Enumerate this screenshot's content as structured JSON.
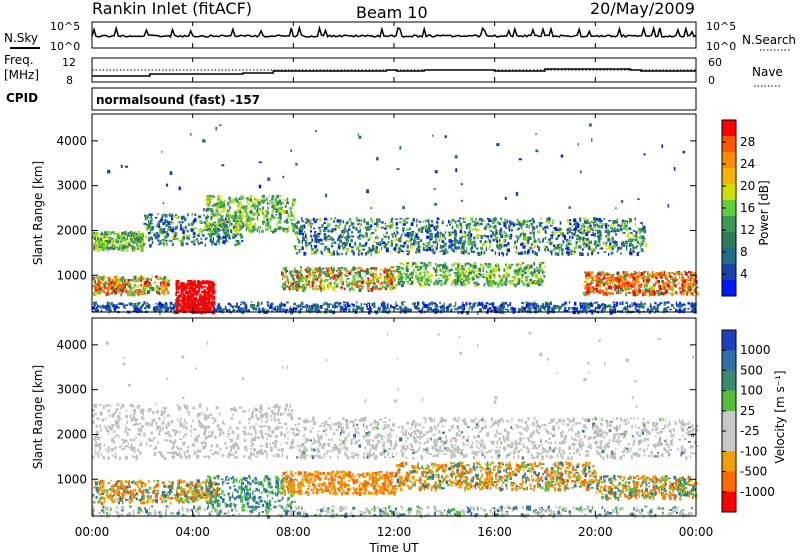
{
  "header": {
    "title": "Rankin Inlet (fitACF)",
    "beam": "Beam 10",
    "date": "20/May/2009"
  },
  "top_panels": {
    "nsky_label": "N.Sky",
    "nsky_ticks": [
      "10^5",
      "10^0"
    ],
    "nsearch_label": "N.Search",
    "nsearch_ticks": [
      "10^5",
      "10^0"
    ],
    "freq_label_1": "Freq.",
    "freq_label_2": "[MHz]",
    "freq_ticks": [
      "12",
      "8"
    ],
    "nave_label": "Nave",
    "nave_ticks": [
      "60",
      "0"
    ],
    "cpid_label": "CPID",
    "cpid_text": "normalsound (fast) -157"
  },
  "chart_data": [
    {
      "type": "heatmap",
      "name": "power",
      "ylabel": "Slant Range [km]",
      "ylim": [
        180,
        4600
      ],
      "y_ticks": [
        1000,
        2000,
        3000,
        4000
      ],
      "y_tick_labels": [
        "1000",
        "2000",
        "3000",
        "4000"
      ],
      "colorbar_label": "Power [dB]",
      "colorbar_ticks": [
        "28",
        "24",
        "20",
        "16",
        "12",
        "8",
        "4"
      ],
      "colorbar_colors": [
        "#ff0000",
        "#ff5500",
        "#ff8c00",
        "#f5b400",
        "#cfe000",
        "#5fd03a",
        "#3a9a55",
        "#2e7d5a",
        "#1f6e8a",
        "#1744a8",
        "#0018ff"
      ]
    },
    {
      "type": "heatmap",
      "name": "velocity",
      "ylabel": "Slant Range [km]",
      "xlabel": "Time UT",
      "ylim": [
        180,
        4600
      ],
      "y_ticks": [
        1000,
        2000,
        3000,
        4000
      ],
      "y_tick_labels": [
        "1000",
        "2000",
        "3000",
        "4000"
      ],
      "colorbar_label": "Velocity [m s⁻¹]",
      "colorbar_ticks": [
        "1000",
        "500",
        "100",
        "25",
        "-25",
        "-100",
        "-500",
        "-1000"
      ],
      "colorbar_colors": [
        "#1f3fbf",
        "#2d6fa8",
        "#3a8a72",
        "#54c03a",
        "#c8c8c8",
        "#c8c8c8",
        "#f0a000",
        "#ff6a00",
        "#ff0000"
      ]
    }
  ],
  "x_axis": {
    "label": "Time UT",
    "hours": [
      0,
      4,
      8,
      12,
      16,
      20,
      24
    ],
    "tick_labels": [
      "00:00",
      "04:00",
      "08:00",
      "12:00",
      "16:00",
      "20:00",
      "00:00"
    ]
  },
  "colors": {
    "axis": "#000000",
    "grey_scatter": "#c0c0c0"
  }
}
